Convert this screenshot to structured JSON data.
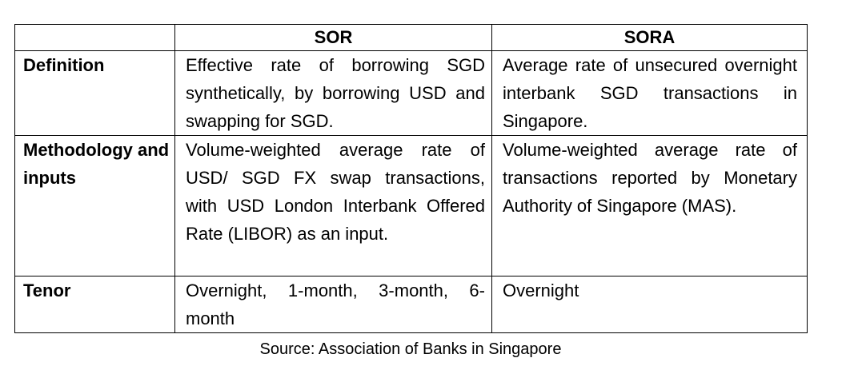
{
  "table": {
    "headers": [
      "",
      "SOR",
      "SORA"
    ],
    "rows": [
      {
        "label": "Definition",
        "sor": "Effective rate of borrowing SGD synthetically, by borrowing USD and swapping for SGD.",
        "sora": "Average rate of unsecured overnight interbank SGD transactions in Singapore."
      },
      {
        "label": "Methodology and inputs",
        "sor": "Volume-weighted average rate of USD/ SGD FX swap transactions, with USD London Interbank Offered Rate (LIBOR) as an input.",
        "sora": "Volume-weighted average rate of transactions reported by Monetary Authority of Singapore (MAS)."
      },
      {
        "label": "Tenor",
        "sor": "Overnight, 1-month, 3-month, 6-month",
        "sora": "Overnight"
      }
    ]
  },
  "source": "Source: Association of Banks in Singapore"
}
